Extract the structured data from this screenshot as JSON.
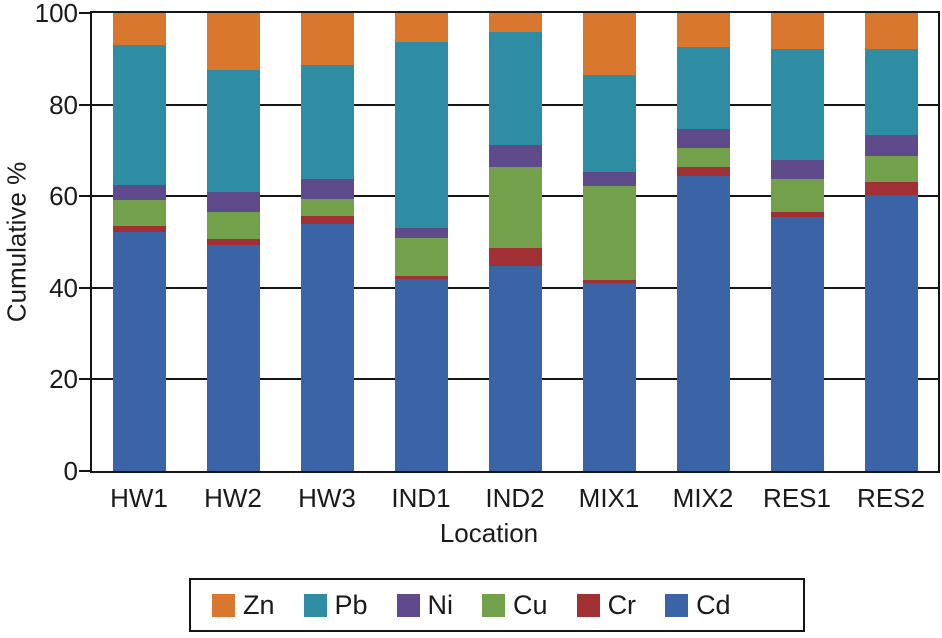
{
  "chart_data": {
    "type": "bar",
    "variant": "stacked-vertical",
    "title": "",
    "xlabel": "Location",
    "ylabel": "Cumulative %",
    "ylim": [
      0,
      100
    ],
    "yticks": [
      0,
      20,
      40,
      60,
      80,
      100
    ],
    "grid": true,
    "categories": [
      "HW1",
      "HW2",
      "HW3",
      "IND1",
      "IND2",
      "MIX1",
      "MIX2",
      "RES1",
      "RES2"
    ],
    "stack_order_bottom_to_top": [
      "Cd",
      "Cr",
      "Cu",
      "Ni",
      "Pb",
      "Zn"
    ],
    "series": [
      {
        "name": "Zn",
        "color": "#D9772F",
        "values": [
          7.0,
          12.4,
          11.4,
          6.3,
          4.2,
          13.6,
          7.5,
          7.8,
          7.8
        ]
      },
      {
        "name": "Pb",
        "color": "#2E8CA3",
        "values": [
          30.5,
          26.6,
          24.8,
          40.7,
          24.7,
          21.0,
          17.8,
          24.2,
          18.9
        ]
      },
      {
        "name": "Ni",
        "color": "#5F4B8C",
        "values": [
          3.3,
          4.5,
          4.3,
          2.1,
          4.7,
          3.1,
          4.1,
          4.3,
          4.5
        ]
      },
      {
        "name": "Cu",
        "color": "#73A04B",
        "values": [
          5.6,
          5.8,
          3.9,
          8.3,
          17.7,
          20.6,
          4.2,
          7.1,
          5.8
        ]
      },
      {
        "name": "Cr",
        "color": "#A03034",
        "values": [
          1.5,
          1.4,
          1.6,
          0.7,
          3.9,
          0.7,
          2.0,
          1.2,
          2.7
        ]
      },
      {
        "name": "Cd",
        "color": "#3A64A5",
        "values": [
          52.1,
          49.3,
          54.0,
          41.9,
          44.8,
          41.0,
          64.4,
          55.4,
          60.3
        ]
      }
    ],
    "legend": {
      "position": "bottom",
      "entries": [
        "Zn",
        "Pb",
        "Ni",
        "Cu",
        "Cr",
        "Cd"
      ]
    }
  }
}
